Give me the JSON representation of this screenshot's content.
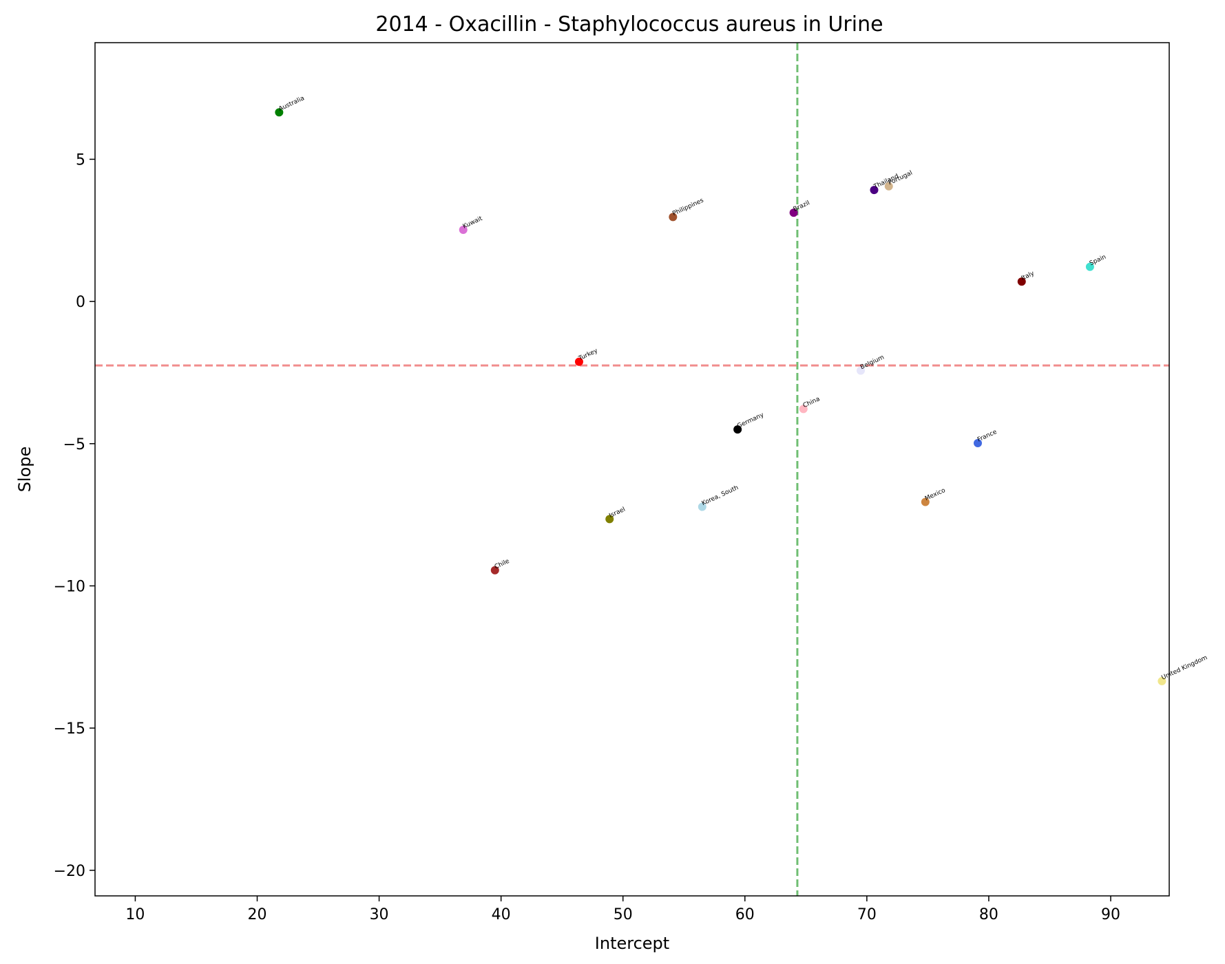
{
  "chart_data": {
    "type": "scatter",
    "title": "2014 - Oxacillin - Staphylococcus aureus in Urine",
    "xlabel": "Intercept",
    "ylabel": "Slope",
    "xlim": [
      6.7,
      94.8
    ],
    "ylim": [
      -20.9,
      9.1
    ],
    "xticks": [
      10,
      20,
      30,
      40,
      50,
      60,
      70,
      80,
      90
    ],
    "yticks": [
      5,
      0,
      -5,
      -10,
      -15,
      -20
    ],
    "xtick_labels": [
      "10",
      "20",
      "30",
      "40",
      "50",
      "60",
      "70",
      "80",
      "90"
    ],
    "ytick_labels": [
      "5",
      "0",
      "−5",
      "−10",
      "−15",
      "−20"
    ],
    "grid": false,
    "reference_lines": {
      "vertical_x": 64.3,
      "vertical_color": "#4caf50",
      "horizontal_y": -2.25,
      "horizontal_color": "#f08080"
    },
    "points": [
      {
        "label": "Australia",
        "x": 21.8,
        "y": 6.65,
        "color": "#008000"
      },
      {
        "label": "Kuwait",
        "x": 36.9,
        "y": 2.52,
        "color": "#da70d6"
      },
      {
        "label": "Philippines",
        "x": 54.1,
        "y": 2.97,
        "color": "#a0522d"
      },
      {
        "label": "Brazil",
        "x": 64.0,
        "y": 3.12,
        "color": "#800080"
      },
      {
        "label": "Thailand",
        "x": 70.6,
        "y": 3.92,
        "color": "#4b0082"
      },
      {
        "label": "Portugal",
        "x": 71.8,
        "y": 4.05,
        "color": "#d2b48c"
      },
      {
        "label": "Italy",
        "x": 82.7,
        "y": 0.7,
        "color": "#800000"
      },
      {
        "label": "Spain",
        "x": 88.3,
        "y": 1.22,
        "color": "#40e0d0"
      },
      {
        "label": "Turkey",
        "x": 46.4,
        "y": -2.12,
        "color": "#ff0000"
      },
      {
        "label": "Belgium",
        "x": 69.5,
        "y": -2.43,
        "color": "#e6e6fa"
      },
      {
        "label": "China",
        "x": 64.8,
        "y": -3.78,
        "color": "#ffb6c1"
      },
      {
        "label": "Germany",
        "x": 59.4,
        "y": -4.5,
        "color": "#000000"
      },
      {
        "label": "France",
        "x": 79.1,
        "y": -4.98,
        "color": "#4169e1"
      },
      {
        "label": "Mexico",
        "x": 74.8,
        "y": -7.05,
        "color": "#cd853f"
      },
      {
        "label": "Korea, South",
        "x": 56.5,
        "y": -7.22,
        "color": "#add8e6"
      },
      {
        "label": "Israel",
        "x": 48.9,
        "y": -7.65,
        "color": "#808000"
      },
      {
        "label": "Chile",
        "x": 39.5,
        "y": -9.45,
        "color": "#a52a2a"
      },
      {
        "label": "United Kingdom",
        "x": 94.2,
        "y": -13.35,
        "color": "#f0e68c"
      }
    ]
  }
}
